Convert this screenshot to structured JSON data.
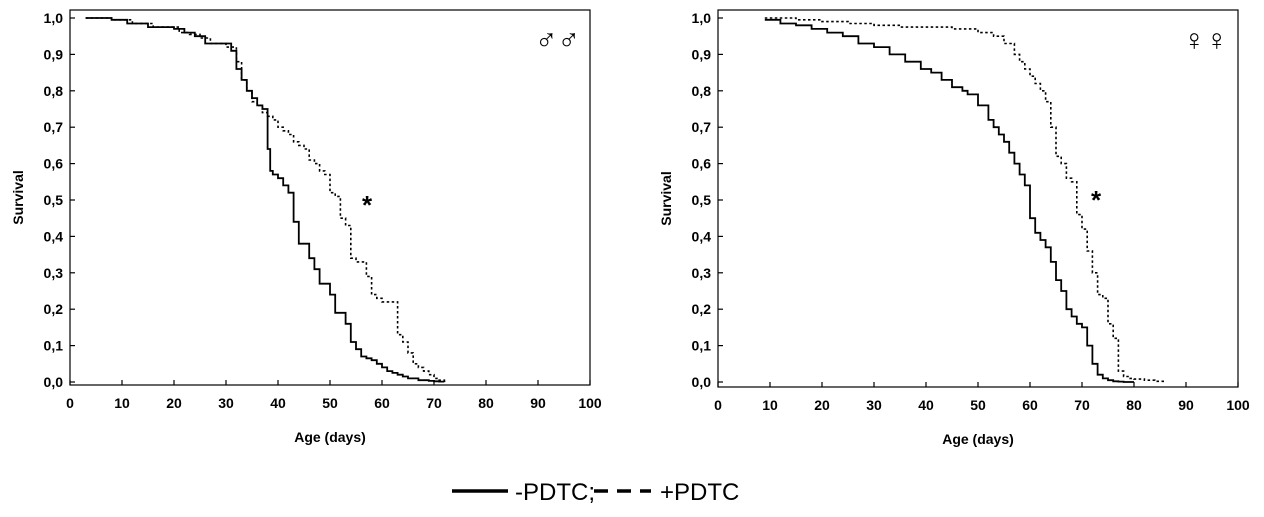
{
  "figure": {
    "legend": {
      "minus_label": "-PDTC;",
      "plus_label": "+PDTC"
    }
  },
  "chart_data": [
    {
      "type": "line",
      "panel": "left",
      "sex_symbol": "♂♂",
      "annotation": "*",
      "xlabel": "Age (days)",
      "ylabel": "Survival",
      "xlim": [
        0,
        100
      ],
      "ylim": [
        0,
        1
      ],
      "x_ticks": [
        "0",
        "10",
        "20",
        "30",
        "40",
        "50",
        "60",
        "70",
        "80",
        "90",
        "100"
      ],
      "y_ticks": [
        "0,0",
        "0,1",
        "0,2",
        "0,3",
        "0,4",
        "0,5",
        "0,6",
        "0,7",
        "0,8",
        "0,9",
        "1,0"
      ],
      "grid": false,
      "series": [
        {
          "name": "-PDTC",
          "line_style": "solid",
          "color": "#000000",
          "x": [
            3,
            8,
            11,
            15,
            20,
            22,
            24,
            26,
            31,
            32,
            33,
            34,
            35,
            36,
            37,
            38,
            38.5,
            39,
            40,
            41,
            42,
            43,
            44,
            45,
            46,
            47,
            48,
            49,
            50,
            51,
            52,
            53,
            54,
            55,
            56,
            57,
            58,
            59,
            60,
            61,
            62,
            63,
            64,
            65,
            66,
            67,
            68,
            69,
            70,
            71,
            72
          ],
          "y": [
            1.0,
            0.995,
            0.985,
            0.975,
            0.97,
            0.96,
            0.95,
            0.93,
            0.91,
            0.86,
            0.83,
            0.8,
            0.78,
            0.76,
            0.75,
            0.64,
            0.58,
            0.57,
            0.56,
            0.54,
            0.52,
            0.44,
            0.38,
            0.38,
            0.34,
            0.31,
            0.27,
            0.27,
            0.24,
            0.19,
            0.19,
            0.16,
            0.11,
            0.09,
            0.07,
            0.065,
            0.06,
            0.05,
            0.04,
            0.03,
            0.025,
            0.02,
            0.015,
            0.01,
            0.01,
            0.005,
            0.005,
            0.003,
            0.002,
            0.001,
            0.0
          ]
        },
        {
          "name": "+PDTC",
          "line_style": "dotted",
          "color": "#000000",
          "x": [
            3,
            8,
            12,
            16,
            21,
            23,
            25,
            27,
            30,
            31,
            32,
            33,
            34,
            35,
            36,
            37,
            38,
            39,
            40,
            41,
            42,
            43,
            44,
            45,
            46,
            47,
            48,
            49,
            50,
            51,
            52,
            53,
            54,
            55,
            56,
            57,
            58,
            59,
            60,
            61,
            62,
            63,
            64,
            65,
            66,
            67,
            68,
            69,
            70,
            71,
            72
          ],
          "y": [
            1.0,
            0.995,
            0.985,
            0.975,
            0.96,
            0.955,
            0.945,
            0.93,
            0.92,
            0.92,
            0.88,
            0.83,
            0.8,
            0.77,
            0.76,
            0.74,
            0.73,
            0.72,
            0.7,
            0.69,
            0.68,
            0.66,
            0.65,
            0.64,
            0.61,
            0.6,
            0.58,
            0.57,
            0.52,
            0.51,
            0.45,
            0.43,
            0.34,
            0.33,
            0.33,
            0.29,
            0.24,
            0.23,
            0.22,
            0.22,
            0.22,
            0.13,
            0.11,
            0.08,
            0.05,
            0.04,
            0.03,
            0.02,
            0.01,
            0.005,
            0.0
          ]
        }
      ]
    },
    {
      "type": "line",
      "panel": "right",
      "sex_symbol": "♀♀",
      "annotation": "*",
      "xlabel": "Age (days)",
      "ylabel": "Survival",
      "xlim": [
        0,
        100
      ],
      "ylim": [
        0,
        1
      ],
      "x_ticks": [
        "0",
        "10",
        "20",
        "30",
        "40",
        "50",
        "60",
        "70",
        "80",
        "90",
        "100"
      ],
      "y_ticks": [
        "0,0",
        "0,1",
        "0,2",
        "0,3",
        "0,4",
        "0,5",
        "0,6",
        "0,7",
        "0,8",
        "0,9",
        "1,0"
      ],
      "grid": false,
      "series": [
        {
          "name": "-PDTC",
          "line_style": "solid",
          "color": "#000000",
          "x": [
            9,
            12,
            15,
            18,
            21,
            24,
            27,
            30,
            33,
            36,
            39,
            41,
            43,
            45,
            47,
            48,
            50,
            52,
            53,
            54,
            55,
            56,
            57,
            58,
            59,
            60,
            61,
            62,
            63,
            64,
            65,
            66,
            67,
            68,
            69,
            70,
            71,
            72,
            73,
            74,
            75,
            76,
            77,
            78,
            79,
            80
          ],
          "y": [
            0.995,
            0.985,
            0.98,
            0.97,
            0.96,
            0.95,
            0.93,
            0.92,
            0.9,
            0.88,
            0.86,
            0.85,
            0.83,
            0.81,
            0.8,
            0.79,
            0.76,
            0.72,
            0.7,
            0.68,
            0.66,
            0.63,
            0.6,
            0.57,
            0.54,
            0.45,
            0.41,
            0.39,
            0.37,
            0.33,
            0.28,
            0.25,
            0.2,
            0.18,
            0.16,
            0.15,
            0.1,
            0.05,
            0.02,
            0.01,
            0.005,
            0.002,
            0.001,
            0.0,
            0.0,
            0.0
          ]
        },
        {
          "name": "+PDTC",
          "line_style": "dotted",
          "color": "#000000",
          "x": [
            9,
            15,
            20,
            25,
            30,
            35,
            40,
            45,
            50,
            53,
            55,
            57,
            58,
            59,
            60,
            61,
            62,
            63,
            64,
            65,
            66,
            67,
            68,
            69,
            70,
            71,
            72,
            73,
            74,
            75,
            76,
            77,
            78,
            79,
            80,
            82,
            84,
            86
          ],
          "y": [
            1.0,
            0.995,
            0.99,
            0.985,
            0.98,
            0.975,
            0.975,
            0.97,
            0.96,
            0.95,
            0.93,
            0.9,
            0.88,
            0.86,
            0.84,
            0.82,
            0.8,
            0.77,
            0.7,
            0.62,
            0.6,
            0.56,
            0.55,
            0.46,
            0.42,
            0.36,
            0.3,
            0.24,
            0.23,
            0.16,
            0.12,
            0.03,
            0.015,
            0.01,
            0.008,
            0.005,
            0.002,
            0.0
          ]
        }
      ]
    }
  ]
}
